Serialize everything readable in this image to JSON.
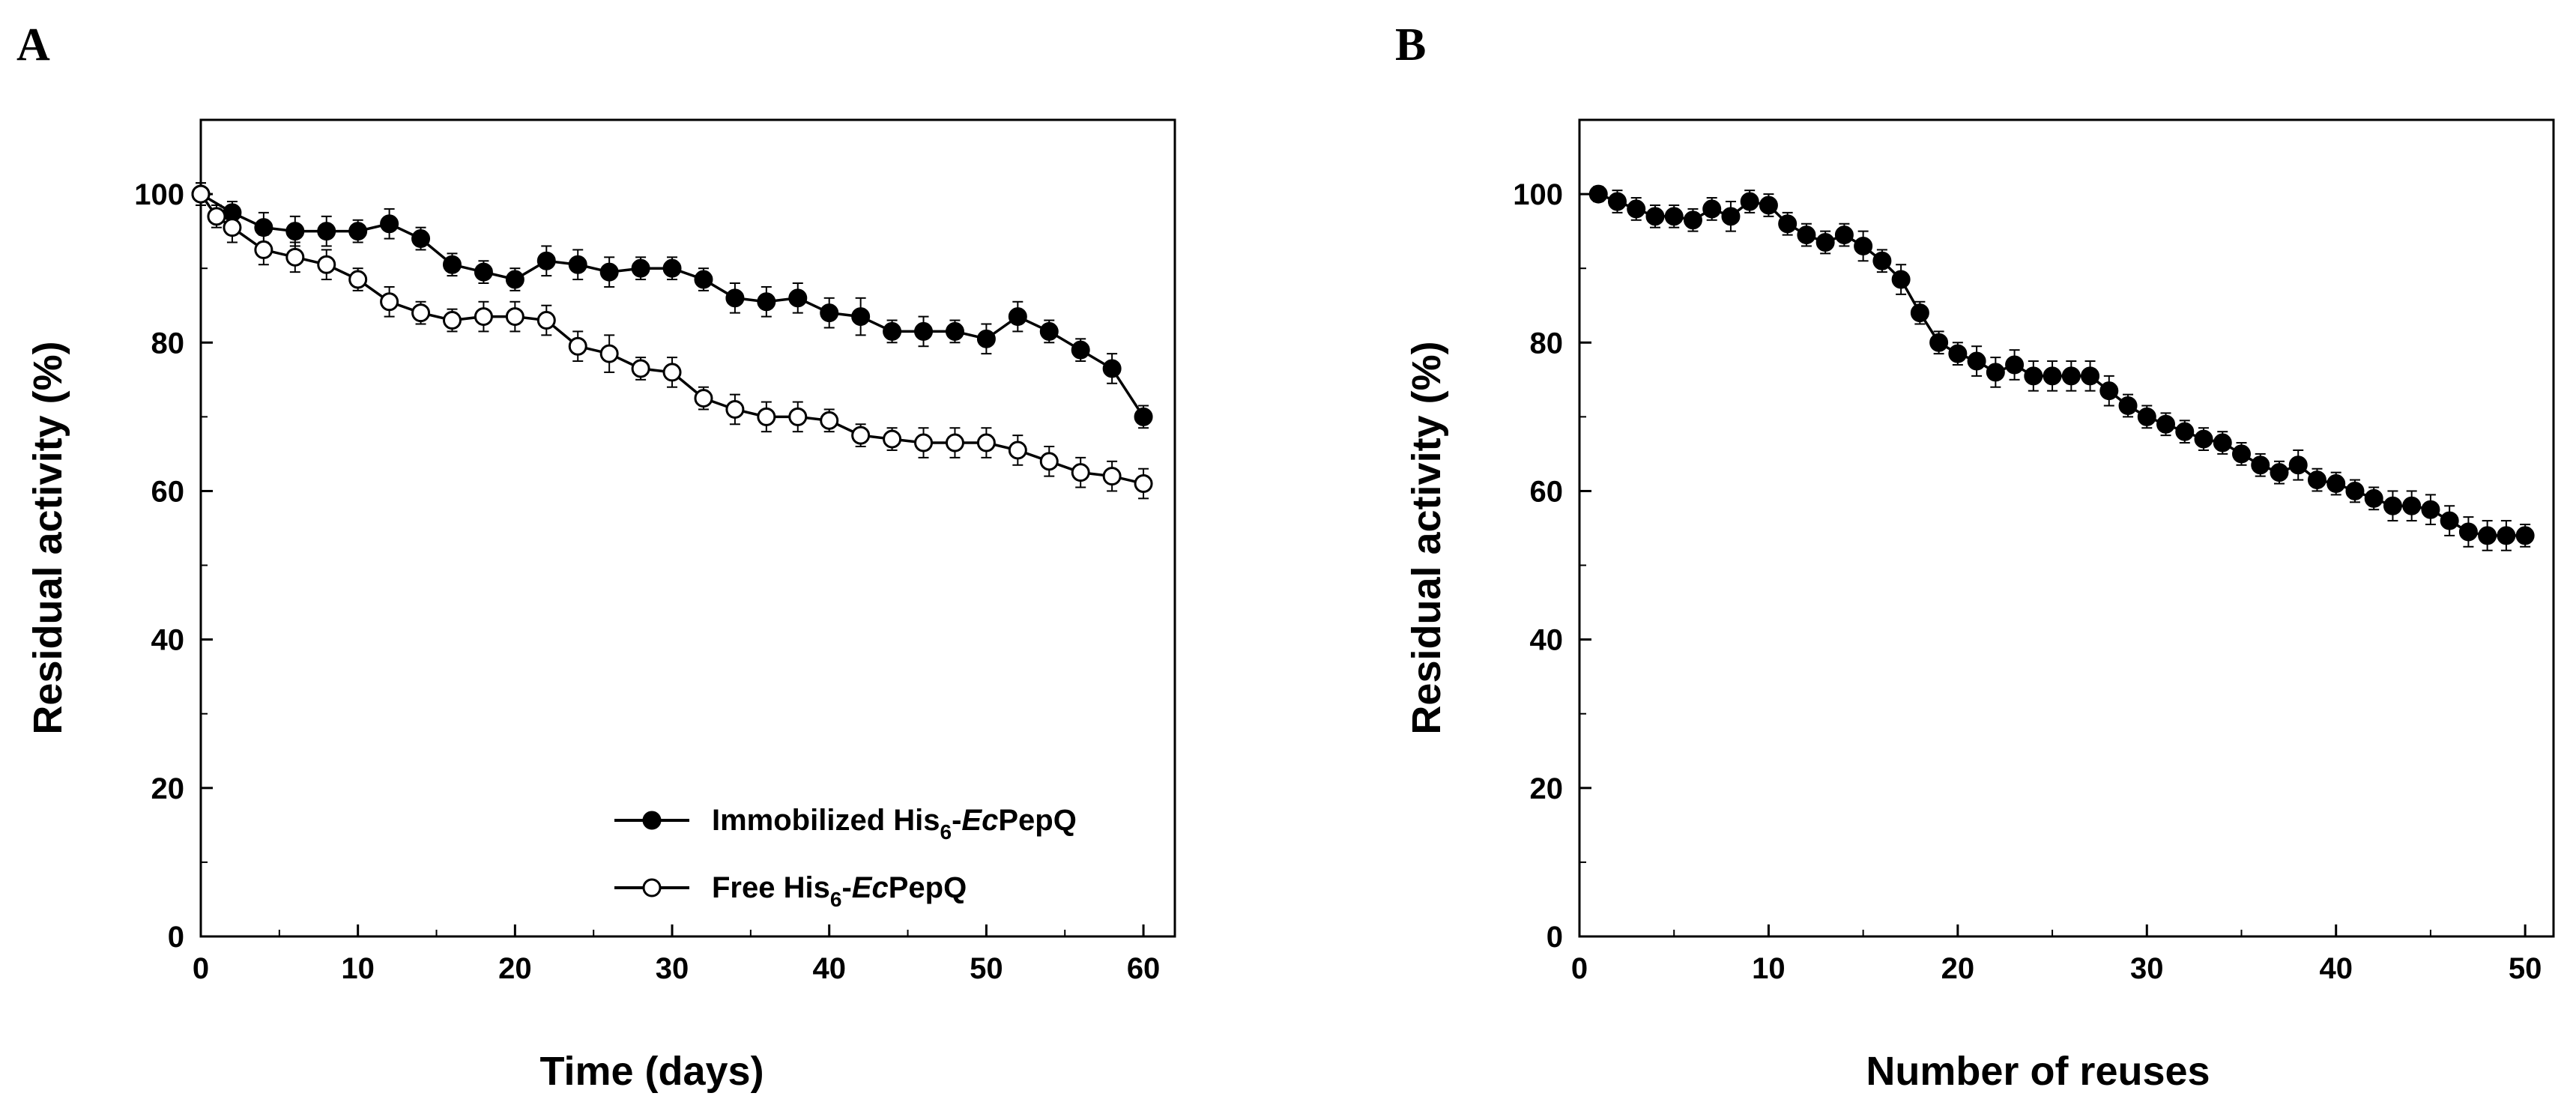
{
  "chart_data": [
    {
      "panel": "A",
      "type": "line",
      "xlabel": "Time (days)",
      "ylabel": "Residual activity (%)",
      "xlim": [
        0,
        62
      ],
      "ylim": [
        0,
        110
      ],
      "xticks": [
        0,
        10,
        20,
        30,
        40,
        50,
        60
      ],
      "yticks": [
        0,
        20,
        40,
        60,
        80,
        100
      ],
      "legend_position": "bottom-right",
      "series": [
        {
          "name": "Immobilized His6-EcPepQ",
          "legend": {
            "prefix": "Immobilized His",
            "sub": "6",
            "mid": "-",
            "italic": "Ec",
            "suffix": "PepQ"
          },
          "marker": "filled-circle",
          "x": [
            0,
            2,
            4,
            6,
            8,
            10,
            12,
            14,
            16,
            18,
            20,
            22,
            24,
            26,
            28,
            30,
            32,
            34,
            36,
            38,
            40,
            42,
            44,
            46,
            48,
            50,
            52,
            54,
            56,
            58,
            60
          ],
          "y": [
            100,
            97.5,
            95.5,
            95,
            95,
            95,
            96,
            94,
            90.5,
            89.5,
            88.5,
            91,
            90.5,
            89.5,
            90,
            90,
            88.5,
            86,
            85.5,
            86,
            84,
            83.5,
            81.5,
            81.5,
            81.5,
            80.5,
            83.5,
            81.5,
            79,
            76.5,
            70
          ],
          "err": [
            1.5,
            1.5,
            2,
            2,
            2,
            1.5,
            2,
            1.5,
            1.5,
            1.5,
            1.5,
            2,
            2,
            2,
            1.5,
            1.5,
            1.5,
            2,
            2,
            2,
            2,
            2.5,
            1.5,
            2,
            1.5,
            2,
            2,
            1.5,
            1.5,
            2,
            1.5
          ]
        },
        {
          "name": "Free His6-EcPepQ",
          "legend": {
            "prefix": "Free His",
            "sub": "6",
            "mid": "-",
            "italic": "Ec",
            "suffix": "PepQ"
          },
          "marker": "open-circle",
          "x": [
            0,
            1,
            2,
            4,
            6,
            8,
            10,
            12,
            14,
            16,
            18,
            20,
            22,
            24,
            26,
            28,
            30,
            32,
            34,
            36,
            38,
            40,
            42,
            44,
            46,
            48,
            50,
            52,
            54,
            56,
            58,
            60
          ],
          "y": [
            100,
            97,
            95.5,
            92.5,
            91.5,
            90.5,
            88.5,
            85.5,
            84,
            83,
            83.5,
            83.5,
            83,
            79.5,
            78.5,
            76.5,
            76,
            72.5,
            71,
            70,
            70,
            69.5,
            67.5,
            67,
            66.5,
            66.5,
            66.5,
            65.5,
            64,
            62.5,
            62,
            61
          ],
          "err": [
            1.5,
            1.5,
            2,
            2,
            2,
            2,
            1.5,
            2,
            1.5,
            1.5,
            2,
            2,
            2,
            2,
            2.5,
            1.5,
            2,
            1.5,
            2,
            2,
            2,
            1.5,
            1.5,
            1.5,
            2,
            2,
            2,
            2,
            2,
            2,
            2,
            2
          ]
        }
      ]
    },
    {
      "panel": "B",
      "type": "line",
      "xlabel": "Number of reuses",
      "ylabel": "Residual activity  (%)",
      "xlim": [
        0,
        51.5
      ],
      "ylim": [
        0,
        110
      ],
      "xticks": [
        0,
        10,
        20,
        30,
        40,
        50
      ],
      "yticks": [
        0,
        20,
        40,
        60,
        80,
        100
      ],
      "series": [
        {
          "name": "Residual activity",
          "marker": "filled-circle",
          "x": [
            1,
            2,
            3,
            4,
            5,
            6,
            7,
            8,
            9,
            10,
            11,
            12,
            13,
            14,
            15,
            16,
            17,
            18,
            19,
            20,
            21,
            22,
            23,
            24,
            25,
            26,
            27,
            28,
            29,
            30,
            31,
            32,
            33,
            34,
            35,
            36,
            37,
            38,
            39,
            40,
            41,
            42,
            43,
            44,
            45,
            46,
            47,
            48,
            49,
            50
          ],
          "y": [
            100,
            99,
            98,
            97,
            97,
            96.5,
            98,
            97,
            99,
            98.5,
            96,
            94.5,
            93.5,
            94.5,
            93,
            91,
            88.5,
            84,
            80,
            78.5,
            77.5,
            76,
            77,
            75.5,
            75.5,
            75.5,
            75.5,
            73.5,
            71.5,
            70,
            69,
            68,
            67,
            66.5,
            65,
            63.5,
            62.5,
            63.5,
            61.5,
            61,
            60,
            59,
            58,
            58,
            57.5,
            56,
            54.5,
            54,
            54,
            54
          ],
          "err": [
            1,
            1.5,
            1.5,
            1.5,
            1.5,
            1.5,
            1.5,
            2,
            1.5,
            1.5,
            1.5,
            1.5,
            1.5,
            1.5,
            2,
            1.5,
            2,
            1.5,
            1.5,
            1.5,
            2,
            2,
            2,
            2,
            2,
            2,
            2,
            2,
            1.5,
            1.5,
            1.5,
            1.5,
            1.5,
            1.5,
            1.5,
            1.5,
            1.5,
            2,
            1.5,
            1.5,
            1.5,
            1.5,
            2,
            2,
            2,
            2,
            2,
            2,
            2,
            1.5
          ]
        }
      ]
    }
  ]
}
